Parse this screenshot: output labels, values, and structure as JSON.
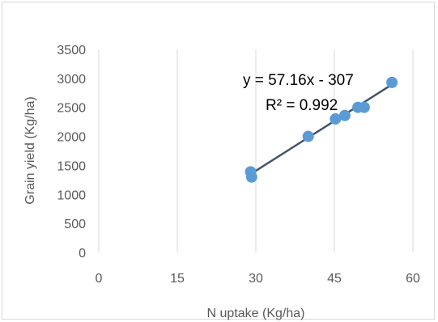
{
  "chart_data": {
    "type": "scatter",
    "title": "",
    "xlabel": "N uptake (Kg/ha)",
    "ylabel": "Grain yield (Kg/ha)",
    "xlim": [
      0,
      60
    ],
    "ylim": [
      0,
      3500
    ],
    "xticks": [
      0,
      15,
      30,
      45,
      60
    ],
    "yticks": [
      0,
      500,
      1000,
      1500,
      2000,
      2500,
      3000,
      3500
    ],
    "grid": "vertical",
    "legend": "none",
    "marker_color": "#5b9bd5",
    "trendline_color": "#44546a",
    "points": [
      {
        "x": 29.0,
        "y": 1390
      },
      {
        "x": 29.2,
        "y": 1300
      },
      {
        "x": 40.0,
        "y": 2000
      },
      {
        "x": 45.2,
        "y": 2300
      },
      {
        "x": 47.0,
        "y": 2360
      },
      {
        "x": 49.5,
        "y": 2500
      },
      {
        "x": 50.7,
        "y": 2500
      },
      {
        "x": 56.0,
        "y": 2930
      }
    ],
    "trendline": {
      "type": "linear",
      "slope": 57.16,
      "intercept": -307,
      "x_range": [
        29,
        56
      ],
      "equation": "y = 57.16x - 307",
      "r2": "R² = 0.992"
    }
  }
}
